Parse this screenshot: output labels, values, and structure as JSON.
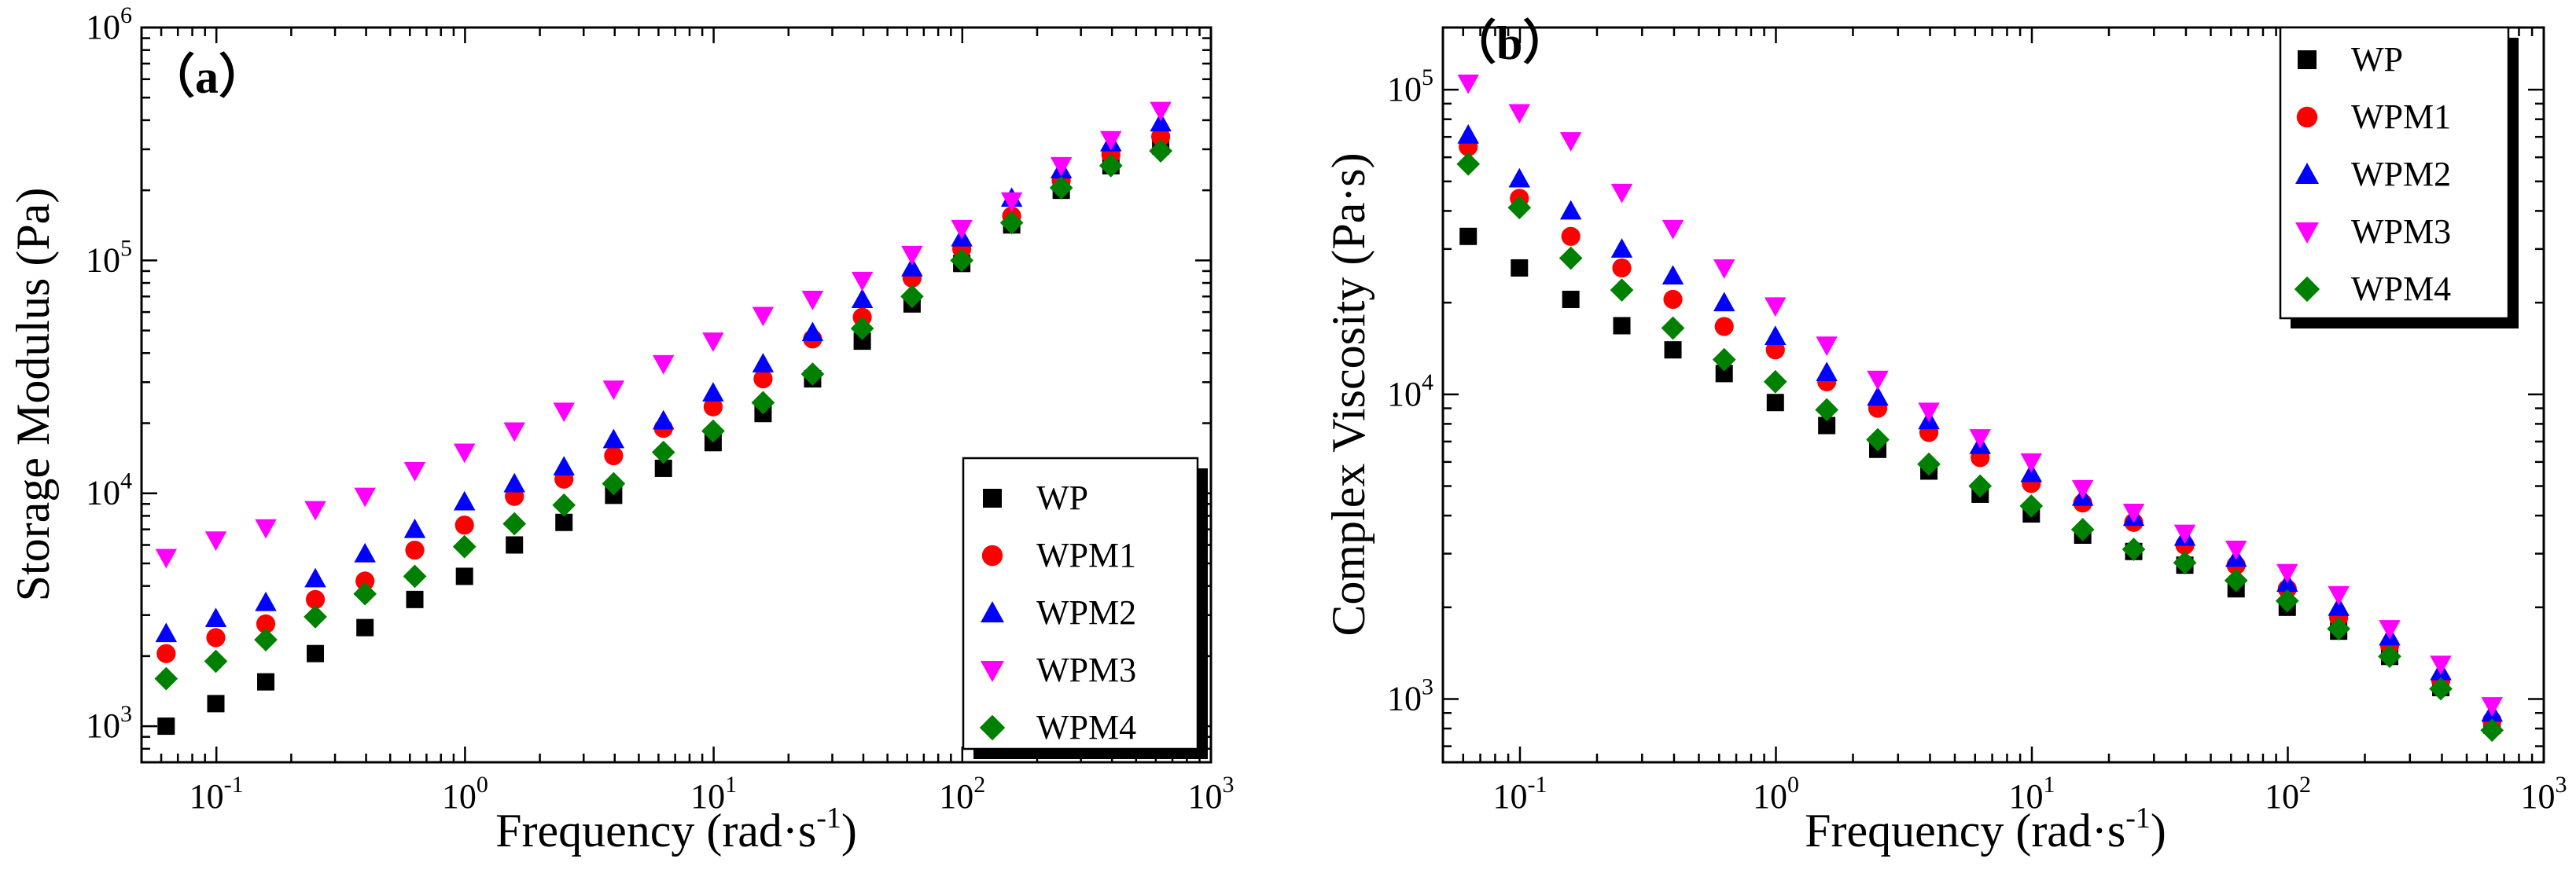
{
  "colors": {
    "WP": "#000000",
    "WPM1": "#ff0000",
    "WPM2": "#0000ff",
    "WPM3": "#ff00ff",
    "WPM4": "#008000"
  },
  "chart_data": [
    {
      "type": "scatter",
      "panel_label": "（a）",
      "xlabel": "Frequency (rad·s",
      "xlabel_sup": "-1",
      "xlabel_end": ")",
      "ylabel": "Storage Modulus (Pa)",
      "xscale": "log",
      "yscale": "log",
      "xlim": [
        0.05,
        1000
      ],
      "ylim": [
        700,
        1000000
      ],
      "x_ticks": [
        {
          "value": 0.1,
          "base": "10",
          "exp": "-1"
        },
        {
          "value": 1,
          "base": "10",
          "exp": "0"
        },
        {
          "value": 10,
          "base": "10",
          "exp": "1"
        },
        {
          "value": 100,
          "base": "10",
          "exp": "2"
        },
        {
          "value": 1000,
          "base": "10",
          "exp": "3"
        }
      ],
      "y_ticks": [
        {
          "value": 1000,
          "base": "10",
          "exp": "3"
        },
        {
          "value": 10000,
          "base": "10",
          "exp": "4"
        },
        {
          "value": 100000,
          "base": "10",
          "exp": "5"
        },
        {
          "value": 1000000,
          "base": "10",
          "exp": "6"
        }
      ],
      "legend_position": "bottom-right",
      "x": [
        0.0628,
        0.0995,
        0.158,
        0.25,
        0.396,
        0.628,
        0.995,
        1.58,
        2.5,
        3.96,
        6.28,
        9.95,
        15.8,
        25,
        39.6,
        62.8,
        99.5,
        158,
        250,
        396,
        628
      ],
      "series": [
        {
          "name": "WP",
          "marker": "square",
          "values": [
            1000,
            1250,
            1550,
            2050,
            2650,
            3500,
            4400,
            6000,
            7500,
            9800,
            12800,
            16500,
            22000,
            31000,
            45000,
            65000,
            97000,
            142000,
            200000,
            255000,
            310000
          ]
        },
        {
          "name": "WPM1",
          "marker": "circle",
          "values": [
            2050,
            2400,
            2750,
            3500,
            4200,
            5700,
            7300,
            9700,
            11500,
            14500,
            19000,
            23500,
            31000,
            46000,
            57000,
            84000,
            112000,
            155000,
            220000,
            285000,
            340000
          ]
        },
        {
          "name": "WPM2",
          "marker": "triangle-up",
          "values": [
            2500,
            2900,
            3400,
            4300,
            5500,
            7000,
            9200,
            11000,
            13000,
            17000,
            20500,
            27000,
            36000,
            49000,
            68000,
            93000,
            125000,
            185000,
            245000,
            320000,
            390000
          ]
        },
        {
          "name": "WPM3",
          "marker": "triangle-down",
          "values": [
            5300,
            6300,
            7100,
            8500,
            9700,
            12500,
            15000,
            18500,
            22500,
            28000,
            36000,
            45000,
            58000,
            68000,
            82000,
            106000,
            137000,
            180000,
            255000,
            330000,
            440000
          ]
        },
        {
          "name": "WPM4",
          "marker": "diamond",
          "values": [
            1600,
            1900,
            2350,
            2950,
            3700,
            4400,
            5900,
            7400,
            8900,
            11000,
            15000,
            18500,
            24500,
            32500,
            51000,
            70000,
            100000,
            145000,
            205000,
            255000,
            295000
          ]
        }
      ]
    },
    {
      "type": "scatter",
      "panel_label": "（b）",
      "xlabel": "Frequency (rad·s",
      "xlabel_sup": "-1",
      "xlabel_end": ")",
      "ylabel": "Complex Viscosity (Pa·s)",
      "xscale": "log",
      "yscale": "log",
      "xlim": [
        0.05,
        1000
      ],
      "ylim": [
        620,
        160000
      ],
      "x_ticks": [
        {
          "value": 0.1,
          "base": "10",
          "exp": "-1"
        },
        {
          "value": 1,
          "base": "10",
          "exp": "0"
        },
        {
          "value": 10,
          "base": "10",
          "exp": "1"
        },
        {
          "value": 100,
          "base": "10",
          "exp": "2"
        },
        {
          "value": 1000,
          "base": "10",
          "exp": "3"
        }
      ],
      "y_ticks": [
        {
          "value": 1000,
          "base": "10",
          "exp": "3"
        },
        {
          "value": 10000,
          "base": "10",
          "exp": "4"
        },
        {
          "value": 100000,
          "base": "10",
          "exp": "5"
        }
      ],
      "legend_position": "top-right",
      "x": [
        0.0628,
        0.0995,
        0.158,
        0.25,
        0.396,
        0.628,
        0.995,
        1.58,
        2.5,
        3.96,
        6.28,
        9.95,
        15.8,
        25,
        39.6,
        62.8,
        99.5,
        158,
        250,
        396,
        628
      ],
      "series": [
        {
          "name": "WP",
          "marker": "square",
          "values": [
            33000,
            26000,
            20500,
            16800,
            14000,
            11700,
            9400,
            7900,
            6600,
            5600,
            4700,
            4050,
            3450,
            3050,
            2750,
            2300,
            2000,
            1670,
            1380,
            1090,
            820
          ]
        },
        {
          "name": "WPM1",
          "marker": "circle",
          "values": [
            65000,
            44000,
            33000,
            26000,
            20500,
            16700,
            14000,
            11000,
            9000,
            7500,
            6200,
            5100,
            4400,
            3800,
            3200,
            2750,
            2300,
            1850,
            1500,
            1150,
            850
          ]
        },
        {
          "name": "WPM2",
          "marker": "triangle-up",
          "values": [
            71000,
            51000,
            40000,
            30000,
            24500,
            20000,
            15500,
            11800,
            9800,
            8200,
            6800,
            5500,
            4600,
            3950,
            3400,
            2900,
            2400,
            2000,
            1600,
            1230,
            900
          ]
        },
        {
          "name": "WPM3",
          "marker": "triangle-down",
          "values": [
            105000,
            84000,
            68000,
            46000,
            35000,
            26000,
            19500,
            14500,
            11200,
            8800,
            7200,
            6000,
            4900,
            4100,
            3500,
            3100,
            2600,
            2200,
            1700,
            1300,
            950
          ]
        },
        {
          "name": "WPM4",
          "marker": "diamond",
          "values": [
            57000,
            41000,
            28000,
            22000,
            16500,
            13000,
            11000,
            8900,
            7100,
            5900,
            5000,
            4300,
            3600,
            3100,
            2800,
            2450,
            2100,
            1700,
            1380,
            1080,
            790
          ]
        }
      ]
    }
  ]
}
